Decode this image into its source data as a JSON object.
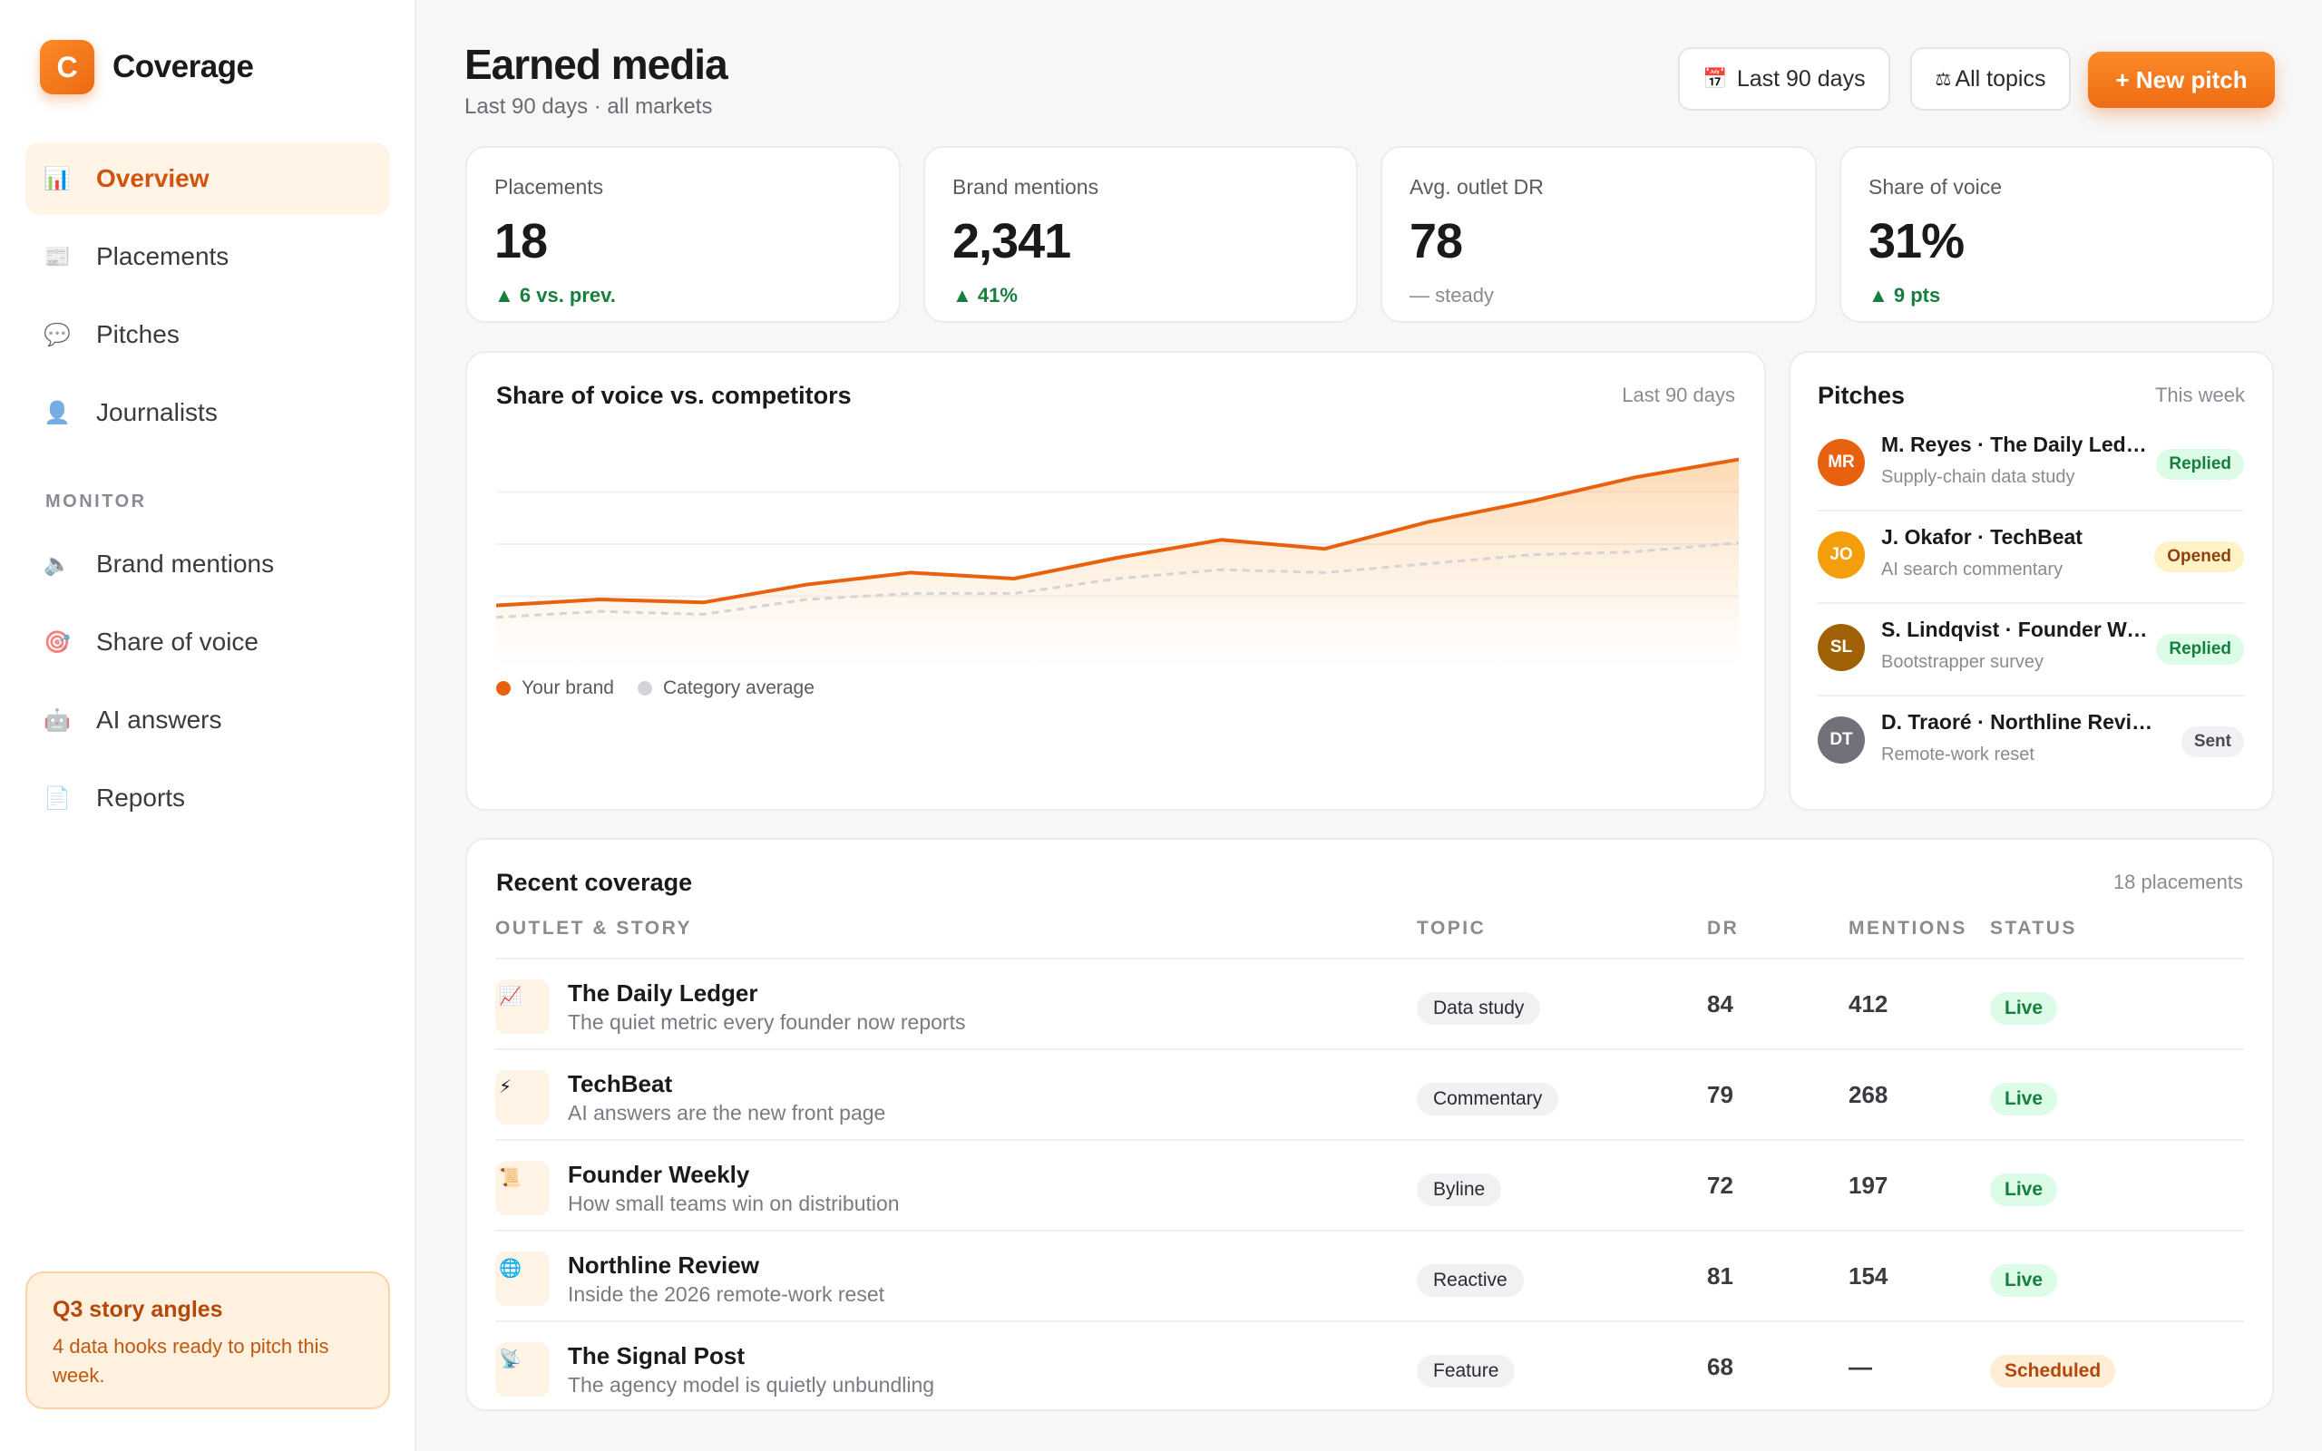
{
  "app": {
    "logo_letter": "C",
    "name": "Coverage"
  },
  "sidebar": {
    "items": [
      {
        "label": "Overview",
        "icon": "📊"
      },
      {
        "label": "Placements",
        "icon": "📰"
      },
      {
        "label": "Pitches",
        "icon": "💬"
      },
      {
        "label": "Journalists",
        "icon": "👤"
      }
    ],
    "section_label": "MONITOR",
    "monitor_items": [
      {
        "label": "Brand mentions",
        "icon": "🔈"
      },
      {
        "label": "Share of voice",
        "icon": "🎯"
      },
      {
        "label": "AI answers",
        "icon": "🤖"
      },
      {
        "label": "Reports",
        "icon": "📄"
      }
    ],
    "promo": {
      "title": "Q3 story angles",
      "text": "4 data hooks ready to pitch this week."
    }
  },
  "header": {
    "title": "Earned media",
    "subtitle": "Last 90 days · all markets",
    "date_filter": {
      "icon": "📅",
      "label": "Last 90 days"
    },
    "topic_filter": {
      "icon": "⚖",
      "label": "All topics"
    },
    "new_pitch": "+ New pitch"
  },
  "kpis": [
    {
      "label": "Placements",
      "value": "18",
      "delta": "▲ 6 vs. prev.",
      "trend": "up"
    },
    {
      "label": "Brand mentions",
      "value": "2,341",
      "delta": "▲ 41%",
      "trend": "up"
    },
    {
      "label": "Avg. outlet DR",
      "value": "78",
      "delta": "— steady",
      "trend": "neutral"
    },
    {
      "label": "Share of voice",
      "value": "31%",
      "delta": "▲ 9 pts",
      "trend": "up"
    }
  ],
  "chart": {
    "title": "Share of voice vs. competitors",
    "meta": "Last 90 days",
    "legend": [
      {
        "label": "Your brand",
        "color": "#e8610f"
      },
      {
        "label": "Category average",
        "color": "#d4d4d8"
      }
    ]
  },
  "chart_data": {
    "type": "area",
    "x": [
      0,
      1,
      2,
      3,
      4,
      5,
      6,
      7,
      8,
      9,
      10,
      11,
      12
    ],
    "series": [
      {
        "name": "Your brand",
        "values": [
          12,
          14,
          13,
          19,
          23,
          21,
          28,
          34,
          31,
          40,
          47,
          55,
          61
        ]
      },
      {
        "name": "Category average",
        "values": [
          8,
          10,
          9,
          14,
          16,
          16,
          21,
          24,
          23,
          26,
          29,
          30,
          33
        ]
      }
    ],
    "ylim": [
      0,
      70
    ],
    "grid": true,
    "legend_position": "bottom-left"
  },
  "pitches": {
    "title": "Pitches",
    "meta": "This week",
    "items": [
      {
        "initials": "MR",
        "avatar_color": "#e8610f",
        "name": "M. Reyes · The Daily Ledger",
        "topic": "Supply-chain data study",
        "status": "Replied",
        "status_kind": "replied"
      },
      {
        "initials": "JO",
        "avatar_color": "#f59e0b",
        "name": "J. Okafor · TechBeat",
        "topic": "AI search commentary",
        "status": "Opened",
        "status_kind": "opened"
      },
      {
        "initials": "SL",
        "avatar_color": "#a16207",
        "name": "S. Lindqvist · Founder Weekly",
        "topic": "Bootstrapper survey",
        "status": "Replied",
        "status_kind": "replied"
      },
      {
        "initials": "DT",
        "avatar_color": "#71717a",
        "name": "D. Traoré · Northline Review",
        "topic": "Remote-work reset",
        "status": "Sent",
        "status_kind": "sent"
      }
    ]
  },
  "coverage": {
    "title": "Recent coverage",
    "meta": "18 placements",
    "columns": [
      "OUTLET & STORY",
      "TOPIC",
      "DR",
      "MENTIONS",
      "STATUS"
    ],
    "rows": [
      {
        "icon": "📈",
        "outlet": "The Daily Ledger",
        "story": "The quiet metric every founder now reports",
        "topic": "Data study",
        "dr": "84",
        "mentions": "412",
        "status": "Live",
        "status_kind": "live"
      },
      {
        "icon": "⚡",
        "outlet": "TechBeat",
        "story": "AI answers are the new front page",
        "topic": "Commentary",
        "dr": "79",
        "mentions": "268",
        "status": "Live",
        "status_kind": "live"
      },
      {
        "icon": "📜",
        "outlet": "Founder Weekly",
        "story": "How small teams win on distribution",
        "topic": "Byline",
        "dr": "72",
        "mentions": "197",
        "status": "Live",
        "status_kind": "live"
      },
      {
        "icon": "🌐",
        "outlet": "Northline Review",
        "story": "Inside the 2026 remote-work reset",
        "topic": "Reactive",
        "dr": "81",
        "mentions": "154",
        "status": "Live",
        "status_kind": "live"
      },
      {
        "icon": "📡",
        "outlet": "The Signal Post",
        "story": "The agency model is quietly unbundling",
        "topic": "Feature",
        "dr": "68",
        "mentions": "—",
        "status": "Scheduled",
        "status_kind": "scheduled"
      }
    ]
  }
}
